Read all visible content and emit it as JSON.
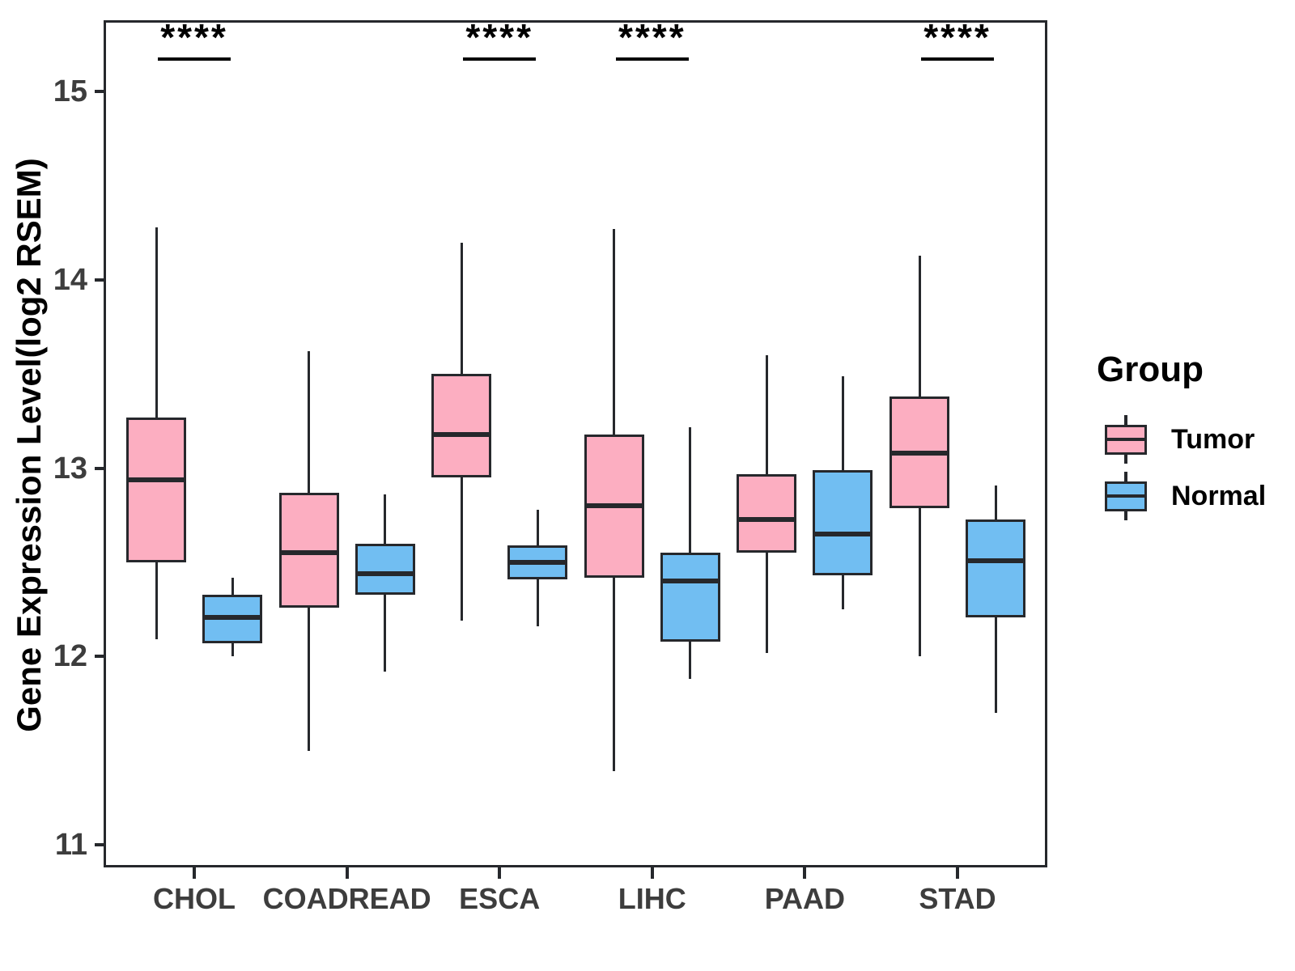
{
  "chart_data": {
    "type": "boxplot",
    "title": "",
    "ylabel": "Gene Expression Level(log2 RSEM)",
    "xlabel": "",
    "y_ticks": [
      15,
      14,
      13,
      12,
      11
    ],
    "y_range": [
      10.88,
      15.38
    ],
    "grid": "off",
    "categories": [
      "CHOL",
      "COADREAD",
      "ESCA",
      "LIHC",
      "PAAD",
      "STAD"
    ],
    "significance": [
      "****",
      null,
      "****",
      "****",
      null,
      "****"
    ],
    "series": [
      {
        "name": "Tumor",
        "color": "#FCAEC1",
        "boxes": [
          {
            "min": 12.09,
            "q1": 12.5,
            "median": 12.94,
            "q3": 13.27,
            "max": 14.28
          },
          {
            "min": 11.5,
            "q1": 12.26,
            "median": 12.55,
            "q3": 12.87,
            "max": 13.62
          },
          {
            "min": 12.19,
            "q1": 12.95,
            "median": 13.18,
            "q3": 13.5,
            "max": 14.2
          },
          {
            "min": 11.39,
            "q1": 12.42,
            "median": 12.8,
            "q3": 13.18,
            "max": 14.27
          },
          {
            "min": 12.02,
            "q1": 12.55,
            "median": 12.73,
            "q3": 12.97,
            "max": 13.6
          },
          {
            "min": 12.0,
            "q1": 12.79,
            "median": 13.08,
            "q3": 13.38,
            "max": 14.13
          }
        ]
      },
      {
        "name": "Normal",
        "color": "#71BEF2",
        "boxes": [
          {
            "min": 12.0,
            "q1": 12.07,
            "median": 12.21,
            "q3": 12.33,
            "max": 12.42
          },
          {
            "min": 11.92,
            "q1": 12.33,
            "median": 12.44,
            "q3": 12.6,
            "max": 12.86
          },
          {
            "min": 12.16,
            "q1": 12.41,
            "median": 12.5,
            "q3": 12.59,
            "max": 12.78
          },
          {
            "min": 11.88,
            "q1": 12.08,
            "median": 12.4,
            "q3": 12.55,
            "max": 13.22
          },
          {
            "min": 12.25,
            "q1": 12.43,
            "median": 12.65,
            "q3": 12.99,
            "max": 13.49
          },
          {
            "min": 11.7,
            "q1": 12.21,
            "median": 12.51,
            "q3": 12.73,
            "max": 12.91
          }
        ]
      }
    ],
    "legend": {
      "title": "Group",
      "position": "right",
      "entries": [
        {
          "label": "Tumor",
          "color": "#FCAEC1"
        },
        {
          "label": "Normal",
          "color": "#71BEF2"
        }
      ]
    }
  },
  "colors": {
    "line": "#26282c",
    "tick_text": "#3d3d3d",
    "text": "#000000",
    "background": "#ffffff"
  }
}
